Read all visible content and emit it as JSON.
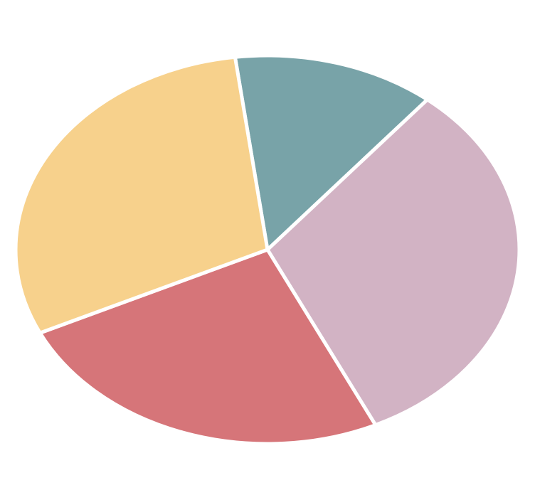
{
  "chart_data": {
    "type": "pie",
    "values": [
      13,
      32,
      25,
      30
    ],
    "colors": [
      "#78a3a8",
      "#d2b3c4",
      "#d67579",
      "#f7d18c"
    ]
  }
}
